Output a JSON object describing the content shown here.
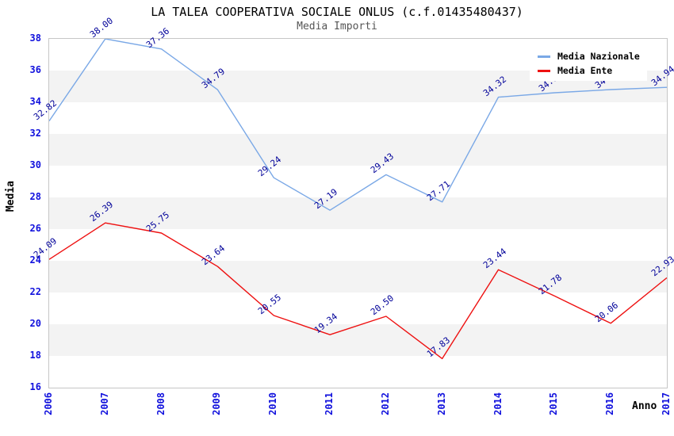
{
  "chart_data": {
    "type": "line",
    "title": "LA TALEA COOPERATIVA SOCIALE ONLUS (c.f.01435480437)",
    "subtitle": "Media Importi",
    "xlabel": "Anno",
    "ylabel": "Media",
    "ylim": [
      16,
      38
    ],
    "ytick_step": 2,
    "yticks": [
      16,
      18,
      20,
      22,
      24,
      26,
      28,
      30,
      32,
      34,
      36,
      38
    ],
    "categories": [
      "2006",
      "2007",
      "2008",
      "2009",
      "2010",
      "2011",
      "2012",
      "2013",
      "2014",
      "2015",
      "2016",
      "2017"
    ],
    "series": [
      {
        "name": "Media Nazionale",
        "color": "#7aa8e6",
        "values": [
          32.82,
          38.0,
          37.36,
          34.79,
          29.24,
          27.19,
          29.43,
          27.71,
          34.32,
          34.6,
          34.8,
          34.94
        ],
        "labels": [
          "32.82",
          "38.00",
          "37.36",
          "34.79",
          "29.24",
          "27.19",
          "29.43",
          "27.71",
          "34.32",
          "34.60",
          "34.80",
          "34.94"
        ]
      },
      {
        "name": "Media Ente",
        "color": "#ee1111",
        "values": [
          24.09,
          26.39,
          25.75,
          23.64,
          20.55,
          19.34,
          20.5,
          17.83,
          23.44,
          21.78,
          20.06,
          22.93
        ],
        "labels": [
          "24.09",
          "26.39",
          "25.75",
          "23.64",
          "20.55",
          "19.34",
          "20.50",
          "17.83",
          "23.44",
          "21.78",
          "20.06",
          "22.93"
        ]
      }
    ],
    "legend": {
      "position": "top-right",
      "items": [
        "Media Nazionale",
        "Media Ente"
      ]
    },
    "grid": {
      "horizontal_bands": true,
      "band_color": "#f3f3f3",
      "band_step": 2
    },
    "colors": {
      "axis_tick": "#1111dd",
      "value_label": "#000099",
      "title": "#000000",
      "subtitle": "#555555",
      "plot_border": "#c6c6c6"
    }
  }
}
